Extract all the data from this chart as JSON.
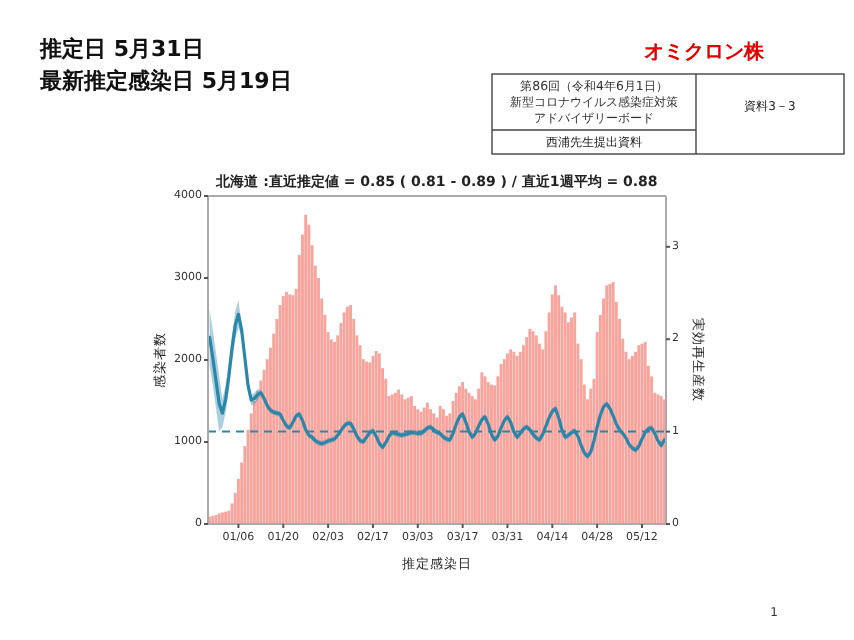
{
  "chart_data": {
    "type": "bar",
    "title": "北海道 :直近推定値 = 0.85 ( 0.81 - 0.89 ) / 直近1週平均 = 0.88",
    "xlabel": "推定感染日",
    "ylabel": "感染者数",
    "y2label": "実効再生産数",
    "annotations": [
      "推定日  5月31日",
      "最新推定感染日  5月19日",
      "オミクロン株",
      "第86回（令和4年6月1日）",
      "新型コロナウイルス感染症対策",
      "アドバイザリーボード",
      "資料3－3",
      "西浦先生提出資料",
      "1"
    ],
    "categories": [
      null,
      null,
      null,
      null,
      null,
      null,
      null,
      null,
      null,
      "01/06",
      null,
      null,
      null,
      null,
      null,
      null,
      null,
      null,
      null,
      null,
      null,
      null,
      null,
      "01/20",
      null,
      null,
      null,
      null,
      null,
      null,
      null,
      null,
      null,
      null,
      null,
      null,
      null,
      "02/03",
      null,
      null,
      null,
      null,
      null,
      null,
      null,
      null,
      null,
      null,
      null,
      null,
      null,
      "02/17",
      null,
      null,
      null,
      null,
      null,
      null,
      null,
      null,
      null,
      null,
      null,
      null,
      null,
      "03/03",
      null,
      null,
      null,
      null,
      null,
      null,
      null,
      null,
      null,
      null,
      null,
      null,
      null,
      "03/17",
      null,
      null,
      null,
      null,
      null,
      null,
      null,
      null,
      null,
      null,
      null,
      null,
      null,
      "03/31",
      null,
      null,
      null,
      null,
      null,
      null,
      null,
      null,
      null,
      null,
      null,
      null,
      null,
      "04/14",
      null,
      null,
      null,
      null,
      null,
      null,
      null,
      null,
      null,
      null,
      null,
      null,
      null,
      "04/28",
      null,
      null,
      null,
      null,
      null,
      null,
      null,
      null,
      null,
      null,
      null,
      null,
      null,
      "05/12",
      null,
      null,
      null,
      null,
      null,
      null,
      null
    ],
    "series": [
      {
        "color": "#f9a39c",
        "values": [
          90,
          100,
          110,
          130,
          140,
          150,
          160,
          250,
          380,
          550,
          750,
          950,
          1150,
          1350,
          1500,
          1620,
          1750,
          1880,
          2010,
          2150,
          2320,
          2500,
          2670,
          2780,
          2830,
          2800,
          2790,
          2870,
          3280,
          3530,
          3770,
          3650,
          3400,
          3150,
          3000,
          2750,
          2550,
          2340,
          2250,
          2220,
          2300,
          2450,
          2580,
          2650,
          2670,
          2500,
          2300,
          2180,
          2010,
          1980,
          1970,
          2050,
          2110,
          2080,
          1900,
          1770,
          1560,
          1580,
          1600,
          1640,
          1580,
          1520,
          1540,
          1560,
          1440,
          1400,
          1370,
          1420,
          1480,
          1400,
          1350,
          1300,
          1440,
          1400,
          1320,
          1350,
          1500,
          1600,
          1680,
          1730,
          1650,
          1600,
          1560,
          1520,
          1650,
          1850,
          1800,
          1730,
          1700,
          1690,
          1800,
          1950,
          2010,
          2080,
          2130,
          2100,
          2050,
          2100,
          2180,
          2280,
          2380,
          2350,
          2300,
          2200,
          2130,
          2350,
          2580,
          2800,
          2910,
          2790,
          2650,
          2580,
          2460,
          2520,
          2580,
          2200,
          2010,
          1700,
          1520,
          1650,
          1770,
          2340,
          2550,
          2750,
          2910,
          2930,
          2950,
          2710,
          2500,
          2260,
          2100,
          2010,
          2050,
          2100,
          2180,
          2200,
          2220,
          1930,
          1800,
          1600,
          1580,
          1560,
          1520
        ]
      },
      {
        "type": "line",
        "axis": "y2",
        "color": "#2b87a9",
        "values": [
          2.02,
          1.8,
          1.55,
          1.3,
          1.2,
          1.35,
          1.6,
          1.9,
          2.15,
          2.27,
          2.1,
          1.8,
          1.5,
          1.34,
          1.36,
          1.4,
          1.42,
          1.36,
          1.28,
          1.23,
          1.21,
          1.2,
          1.19,
          1.12,
          1.06,
          1.04,
          1.1,
          1.17,
          1.19,
          1.12,
          1.02,
          0.96,
          0.94,
          0.9,
          0.88,
          0.87,
          0.88,
          0.9,
          0.91,
          0.92,
          0.96,
          1.01,
          1.06,
          1.09,
          1.09,
          1.03,
          0.95,
          0.9,
          0.89,
          0.94,
          0.99,
          1.01,
          0.95,
          0.87,
          0.83,
          0.88,
          0.95,
          0.99,
          0.98,
          0.97,
          0.96,
          0.97,
          0.98,
          0.99,
          0.99,
          0.98,
          0.98,
          1.01,
          1.04,
          1.05,
          1.02,
          0.99,
          0.98,
          0.94,
          0.92,
          0.91,
          0.98,
          1.08,
          1.16,
          1.19,
          1.1,
          1.0,
          0.94,
          0.98,
          1.06,
          1.13,
          1.16,
          1.08,
          0.97,
          0.91,
          0.95,
          1.04,
          1.12,
          1.16,
          1.1,
          1.0,
          0.94,
          0.98,
          1.03,
          1.05,
          1.02,
          0.97,
          0.93,
          0.91,
          0.97,
          1.06,
          1.15,
          1.22,
          1.25,
          1.15,
          1.02,
          0.94,
          0.96,
          0.99,
          1.01,
          0.95,
          0.85,
          0.77,
          0.73,
          0.78,
          0.9,
          1.05,
          1.18,
          1.27,
          1.3,
          1.25,
          1.17,
          1.08,
          1.02,
          0.98,
          0.93,
          0.86,
          0.82,
          0.8,
          0.84,
          0.92,
          0.99,
          1.03,
          1.04,
          0.98,
          0.9,
          0.85,
          0.91
        ],
        "upper": [
          2.32,
          2.1,
          1.85,
          1.6,
          1.35,
          1.5,
          1.75,
          2.05,
          2.3,
          2.42,
          2.16,
          1.86,
          1.56,
          1.4,
          1.42,
          1.46,
          1.45,
          1.39,
          1.31,
          1.26,
          1.24,
          1.23,
          1.22,
          1.15,
          1.09,
          1.07,
          1.13,
          1.2,
          1.22,
          1.15,
          1.05,
          0.99,
          0.97,
          0.93,
          0.91,
          0.9,
          0.91,
          0.93,
          0.94,
          0.95,
          0.99,
          1.04,
          1.09,
          1.12,
          1.12,
          1.06,
          0.98,
          0.93,
          0.92,
          0.97,
          1.02,
          1.04,
          0.98,
          0.9,
          0.86,
          0.91,
          0.98,
          1.02,
          1.01,
          1.0,
          0.99,
          1.0,
          1.01,
          1.02,
          1.02,
          1.01,
          1.01,
          1.04,
          1.07,
          1.08,
          1.05,
          1.02,
          1.01,
          0.97,
          0.95,
          0.94,
          1.01,
          1.11,
          1.19,
          1.22,
          1.13,
          1.03,
          0.97,
          1.01,
          1.09,
          1.16,
          1.19,
          1.11,
          1.0,
          0.94,
          0.98,
          1.07,
          1.15,
          1.19,
          1.13,
          1.03,
          0.97,
          1.01,
          1.06,
          1.08,
          1.05,
          1.0,
          0.96,
          0.94,
          1.0,
          1.09,
          1.18,
          1.25,
          1.28,
          1.18,
          1.05,
          0.97,
          0.99,
          1.02,
          1.04,
          0.98,
          0.88,
          0.8,
          0.76,
          0.81,
          0.93,
          1.08,
          1.21,
          1.3,
          1.33,
          1.28,
          1.2,
          1.11,
          1.05,
          1.01,
          0.96,
          0.89,
          0.85,
          0.83,
          0.87,
          0.95,
          1.02,
          1.06,
          1.07,
          1.01,
          0.93,
          0.88,
          0.94
        ],
        "lower": [
          1.72,
          1.5,
          1.25,
          1.0,
          1.05,
          1.2,
          1.45,
          1.75,
          2.0,
          2.12,
          2.04,
          1.74,
          1.44,
          1.28,
          1.3,
          1.34,
          1.39,
          1.33,
          1.25,
          1.2,
          1.18,
          1.17,
          1.16,
          1.09,
          1.03,
          1.01,
          1.07,
          1.14,
          1.16,
          1.09,
          0.99,
          0.93,
          0.91,
          0.87,
          0.85,
          0.84,
          0.85,
          0.87,
          0.88,
          0.89,
          0.93,
          0.98,
          1.03,
          1.06,
          1.06,
          1.0,
          0.92,
          0.87,
          0.86,
          0.91,
          0.96,
          0.98,
          0.92,
          0.84,
          0.8,
          0.85,
          0.92,
          0.96,
          0.95,
          0.94,
          0.93,
          0.94,
          0.95,
          0.96,
          0.96,
          0.95,
          0.95,
          0.98,
          1.01,
          1.02,
          0.99,
          0.96,
          0.95,
          0.91,
          0.89,
          0.88,
          0.95,
          1.05,
          1.13,
          1.16,
          1.07,
          0.97,
          0.91,
          0.95,
          1.03,
          1.1,
          1.13,
          1.05,
          0.94,
          0.88,
          0.92,
          1.01,
          1.09,
          1.13,
          1.07,
          0.97,
          0.91,
          0.95,
          1.0,
          1.02,
          0.99,
          0.94,
          0.9,
          0.88,
          0.94,
          1.03,
          1.12,
          1.19,
          1.22,
          1.12,
          0.99,
          0.91,
          0.93,
          0.96,
          0.98,
          0.92,
          0.82,
          0.74,
          0.7,
          0.75,
          0.87,
          1.02,
          1.15,
          1.24,
          1.27,
          1.22,
          1.14,
          1.05,
          0.99,
          0.95,
          0.9,
          0.83,
          0.79,
          0.77,
          0.81,
          0.89,
          0.96,
          1.0,
          1.01,
          0.95,
          0.87,
          0.82,
          0.88
        ]
      }
    ],
    "ylim": [
      0,
      4000
    ],
    "yticks": [
      0,
      1000,
      2000,
      3000,
      4000
    ],
    "y2lim": [
      0,
      3.55
    ],
    "y2ticks": [
      0,
      1,
      2,
      3
    ],
    "ref_lines": [
      {
        "axis": "y2",
        "value": 1,
        "color": "#2b87a9",
        "line_style": "dashed"
      }
    ]
  }
}
